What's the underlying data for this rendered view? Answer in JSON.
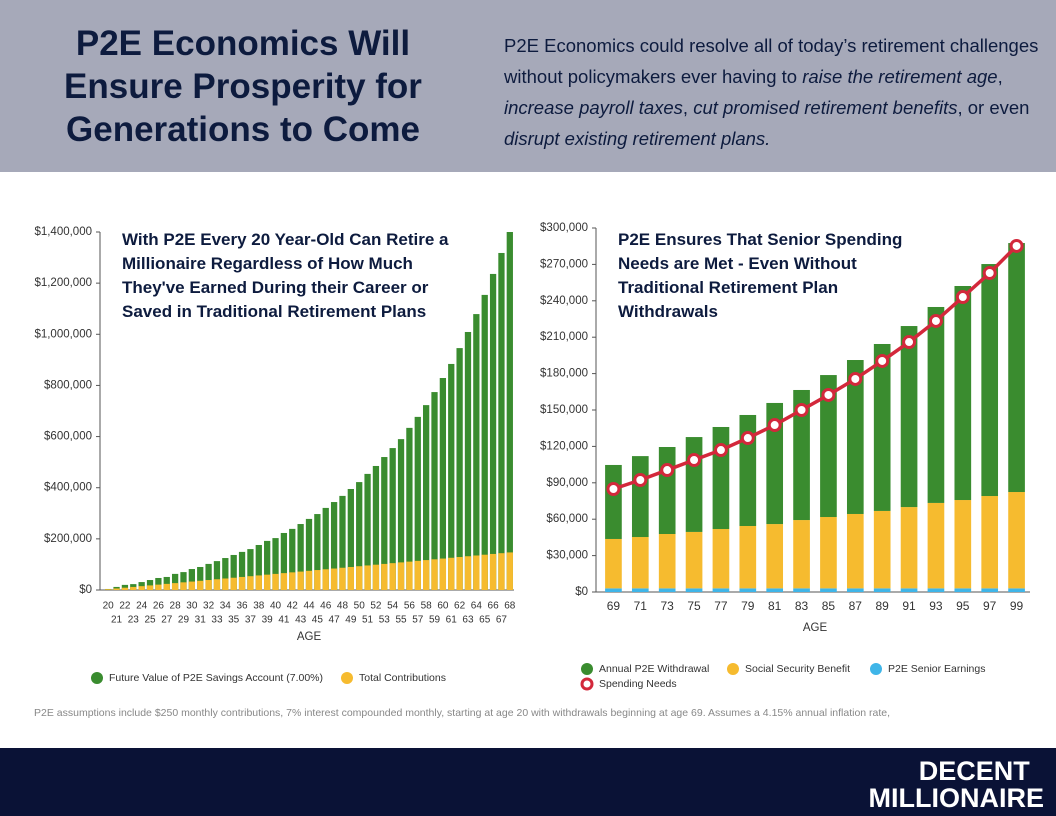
{
  "header": {
    "title": "P2E Economics Will Ensure Prosperity for Generations to Come",
    "paragraph": [
      {
        "text": "P2E Economics could resolve all of today’s retirement challenges without policymakers ever having to ",
        "italic": false
      },
      {
        "text": "raise the retirement age",
        "italic": true
      },
      {
        "text": ", ",
        "italic": false
      },
      {
        "text": "increase payroll taxes",
        "italic": true
      },
      {
        "text": ", ",
        "italic": false
      },
      {
        "text": "cut promised retirement benefits",
        "italic": true
      },
      {
        "text": ", or even ",
        "italic": false
      },
      {
        "text": "disrupt existing retirement plans.",
        "italic": true
      }
    ]
  },
  "chart_data": [
    {
      "type": "bar",
      "stacked": false,
      "title": "With P2E Every 20 Year-Old Can Retire a Millionaire Regardless of How Much They've Earned During their Career or Saved in Traditional Retirement Plans",
      "xlabel": "AGE",
      "categories": [
        20,
        21,
        22,
        23,
        24,
        25,
        26,
        27,
        28,
        29,
        30,
        31,
        32,
        33,
        34,
        35,
        36,
        37,
        38,
        39,
        40,
        41,
        42,
        43,
        44,
        45,
        46,
        47,
        48,
        49,
        50,
        51,
        52,
        53,
        54,
        55,
        56,
        57,
        58,
        59,
        60,
        61,
        62,
        63,
        64,
        65,
        66,
        67,
        68
      ],
      "series": [
        {
          "name": "Future Value of P2E Savings Account (7.00%)",
          "color": "#3a8c2f",
          "values": [
            4000,
            12000,
            20000,
            23000,
            31000,
            39000,
            47000,
            51000,
            63000,
            70000,
            82000,
            90000,
            102000,
            113000,
            125000,
            137000,
            149000,
            160000,
            176000,
            192000,
            203000,
            223000,
            239000,
            258000,
            278000,
            297000,
            321000,
            344000,
            368000,
            395000,
            422000,
            454000,
            485000,
            520000,
            555000,
            590000,
            634000,
            677000,
            723000,
            774000,
            829000,
            884000,
            946000,
            1009000,
            1079000,
            1154000,
            1236000,
            1318000,
            1400000
          ]
        },
        {
          "name": "Total Contributions",
          "color": "#f6bb2f",
          "values": [
            3000,
            6000,
            9000,
            12000,
            15000,
            18000,
            21000,
            24000,
            27000,
            30000,
            33000,
            36000,
            39000,
            42000,
            45000,
            48000,
            51000,
            54000,
            57000,
            60000,
            63000,
            66000,
            69000,
            72000,
            75000,
            78000,
            81000,
            84000,
            87000,
            90000,
            93000,
            96000,
            99000,
            102000,
            105000,
            108000,
            111000,
            114000,
            117000,
            120000,
            123000,
            126000,
            129000,
            132000,
            135000,
            138000,
            141000,
            144000,
            147000
          ]
        }
      ],
      "ylim": [
        0,
        1400000
      ],
      "yticks": [
        {
          "value": 0,
          "label": "$0"
        },
        {
          "value": 200000,
          "label": "$200,000"
        },
        {
          "value": 400000,
          "label": "$400,000"
        },
        {
          "value": 600000,
          "label": "$600,000"
        },
        {
          "value": 800000,
          "label": "$800,000"
        },
        {
          "value": 1000000,
          "label": "$1,000,000"
        },
        {
          "value": 1200000,
          "label": "$1,200,000"
        },
        {
          "value": 1400000,
          "label": "$1,400,000"
        }
      ]
    },
    {
      "type": "bar",
      "stacked": true,
      "title": "P2E Ensures That Senior Spending Needs are Met - Even Without Traditional Retirement Plan Withdrawals",
      "xlabel": "AGE",
      "categories": [
        69,
        71,
        73,
        75,
        77,
        79,
        81,
        83,
        85,
        87,
        89,
        91,
        93,
        95,
        97,
        99
      ],
      "series": [
        {
          "name": "Annual P2E Withdrawal",
          "color": "#3a8c2f",
          "values": [
            61000,
            66700,
            71700,
            78200,
            84100,
            91500,
            99800,
            107200,
            117000,
            126900,
            137600,
            149200,
            161500,
            176400,
            191200,
            205200
          ]
        },
        {
          "name": "Social Security Benefit",
          "color": "#f6bb2f",
          "values": [
            40700,
            42300,
            44800,
            46500,
            48900,
            51400,
            53000,
            56300,
            58800,
            61300,
            63800,
            67000,
            70400,
            72800,
            76100,
            79400
          ]
        },
        {
          "name": "P2E Senior Earnings",
          "color": "#3fb5e8",
          "values": [
            3000,
            3000,
            3000,
            3000,
            3000,
            3000,
            3000,
            3000,
            3000,
            3000,
            3000,
            3000,
            3000,
            3000,
            3000,
            3000
          ]
        },
        {
          "name": "Spending Needs",
          "color": "#d3283b",
          "type": "line",
          "values": [
            84900,
            92300,
            100500,
            108800,
            117000,
            126900,
            137600,
            150000,
            162400,
            175600,
            190400,
            206000,
            223400,
            243100,
            262900,
            285200
          ]
        }
      ],
      "ylim": [
        0,
        300000
      ],
      "yticks": [
        {
          "value": 0,
          "label": "$0"
        },
        {
          "value": 30000,
          "label": "$30,000"
        },
        {
          "value": 60000,
          "label": "$60,000"
        },
        {
          "value": 90000,
          "label": "$90,000"
        },
        {
          "value": 120000,
          "label": "$120,000"
        },
        {
          "value": 150000,
          "label": "$150,000"
        },
        {
          "value": 180000,
          "label": "$180,000"
        },
        {
          "value": 210000,
          "label": "$210,000"
        },
        {
          "value": 240000,
          "label": "$240,000"
        },
        {
          "value": 270000,
          "label": "$270,000"
        },
        {
          "value": 300000,
          "label": "$300,000"
        }
      ]
    }
  ],
  "footnote": "P2E assumptions include  $250 monthly contributions, 7% interest compounded monthly, starting at age 20 with withdrawals beginning at age 69. Assumes a 4.15% annual inflation rate,",
  "logo": {
    "line1": "DECENT",
    "line2": "MILLIONAIRE"
  }
}
